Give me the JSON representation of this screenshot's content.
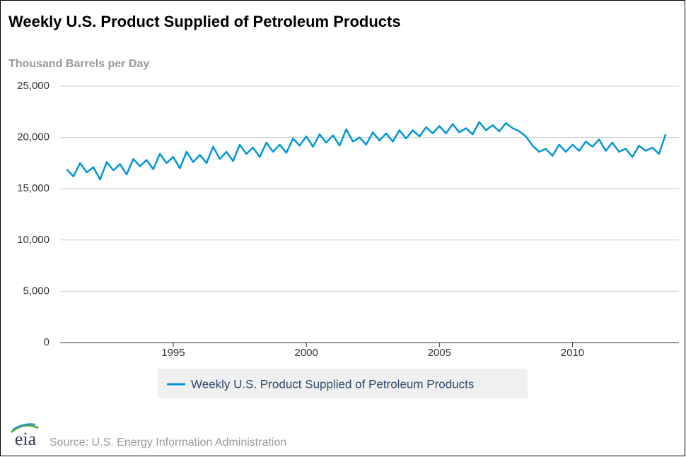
{
  "chart_data": {
    "type": "line",
    "title": "Weekly U.S. Product Supplied of Petroleum Products",
    "y_axis_label": "Thousand Barrels per Day",
    "source": "Source: U.S. Energy Information Administration",
    "logo": "eia",
    "x": [
      1991,
      1991.25,
      1991.5,
      1991.75,
      1992,
      1992.25,
      1992.5,
      1992.75,
      1993,
      1993.25,
      1993.5,
      1993.75,
      1994,
      1994.25,
      1994.5,
      1994.75,
      1995,
      1995.25,
      1995.5,
      1995.75,
      1996,
      1996.25,
      1996.5,
      1996.75,
      1997,
      1997.25,
      1997.5,
      1997.75,
      1998,
      1998.25,
      1998.5,
      1998.75,
      1999,
      1999.25,
      1999.5,
      1999.75,
      2000,
      2000.25,
      2000.5,
      2000.75,
      2001,
      2001.25,
      2001.5,
      2001.75,
      2002,
      2002.25,
      2002.5,
      2002.75,
      2003,
      2003.25,
      2003.5,
      2003.75,
      2004,
      2004.25,
      2004.5,
      2004.75,
      2005,
      2005.25,
      2005.5,
      2005.75,
      2006,
      2006.25,
      2006.5,
      2006.75,
      2007,
      2007.25,
      2007.5,
      2007.75,
      2008,
      2008.25,
      2008.5,
      2008.75,
      2009,
      2009.25,
      2009.5,
      2009.75,
      2010,
      2010.25,
      2010.5,
      2010.75,
      2011,
      2011.25,
      2011.5,
      2011.75,
      2012,
      2012.25,
      2012.5,
      2012.75,
      2013,
      2013.25,
      2013.5
    ],
    "series": [
      {
        "name": "Weekly U.S. Product Supplied of Petroleum Products",
        "color": "#0096d7",
        "values": [
          16900,
          16200,
          17500,
          16600,
          17100,
          15900,
          17600,
          16800,
          17400,
          16400,
          17900,
          17200,
          17800,
          16900,
          18400,
          17500,
          18100,
          17000,
          18600,
          17600,
          18300,
          17500,
          19100,
          17900,
          18600,
          17700,
          19300,
          18400,
          19000,
          18100,
          19500,
          18600,
          19300,
          18500,
          19900,
          19200,
          20100,
          19100,
          20300,
          19500,
          20200,
          19200,
          20800,
          19600,
          20000,
          19300,
          20500,
          19700,
          20400,
          19600,
          20700,
          19900,
          20700,
          20100,
          21000,
          20400,
          21100,
          20400,
          21300,
          20500,
          20900,
          20300,
          21500,
          20700,
          21200,
          20600,
          21400,
          20900,
          20600,
          20100,
          19200,
          18600,
          18900,
          18200,
          19300,
          18600,
          19300,
          18700,
          19600,
          19100,
          19800,
          18700,
          19500,
          18600,
          18900,
          18100,
          19200,
          18700,
          19000,
          18400,
          20300
        ]
      }
    ],
    "xlim": [
      1990.75,
      2014.0
    ],
    "xticks": [
      1995,
      2000,
      2005,
      2010
    ],
    "ylim": [
      0,
      25000
    ],
    "yticks": [
      0,
      {
        "value": 5000,
        "label": "5,000"
      },
      {
        "value": 10000,
        "label": "10,000"
      },
      {
        "value": 15000,
        "label": "15,000"
      },
      {
        "value": 20000,
        "label": "20,000"
      },
      {
        "value": 25000,
        "label": "25,000"
      }
    ],
    "grid": true
  }
}
